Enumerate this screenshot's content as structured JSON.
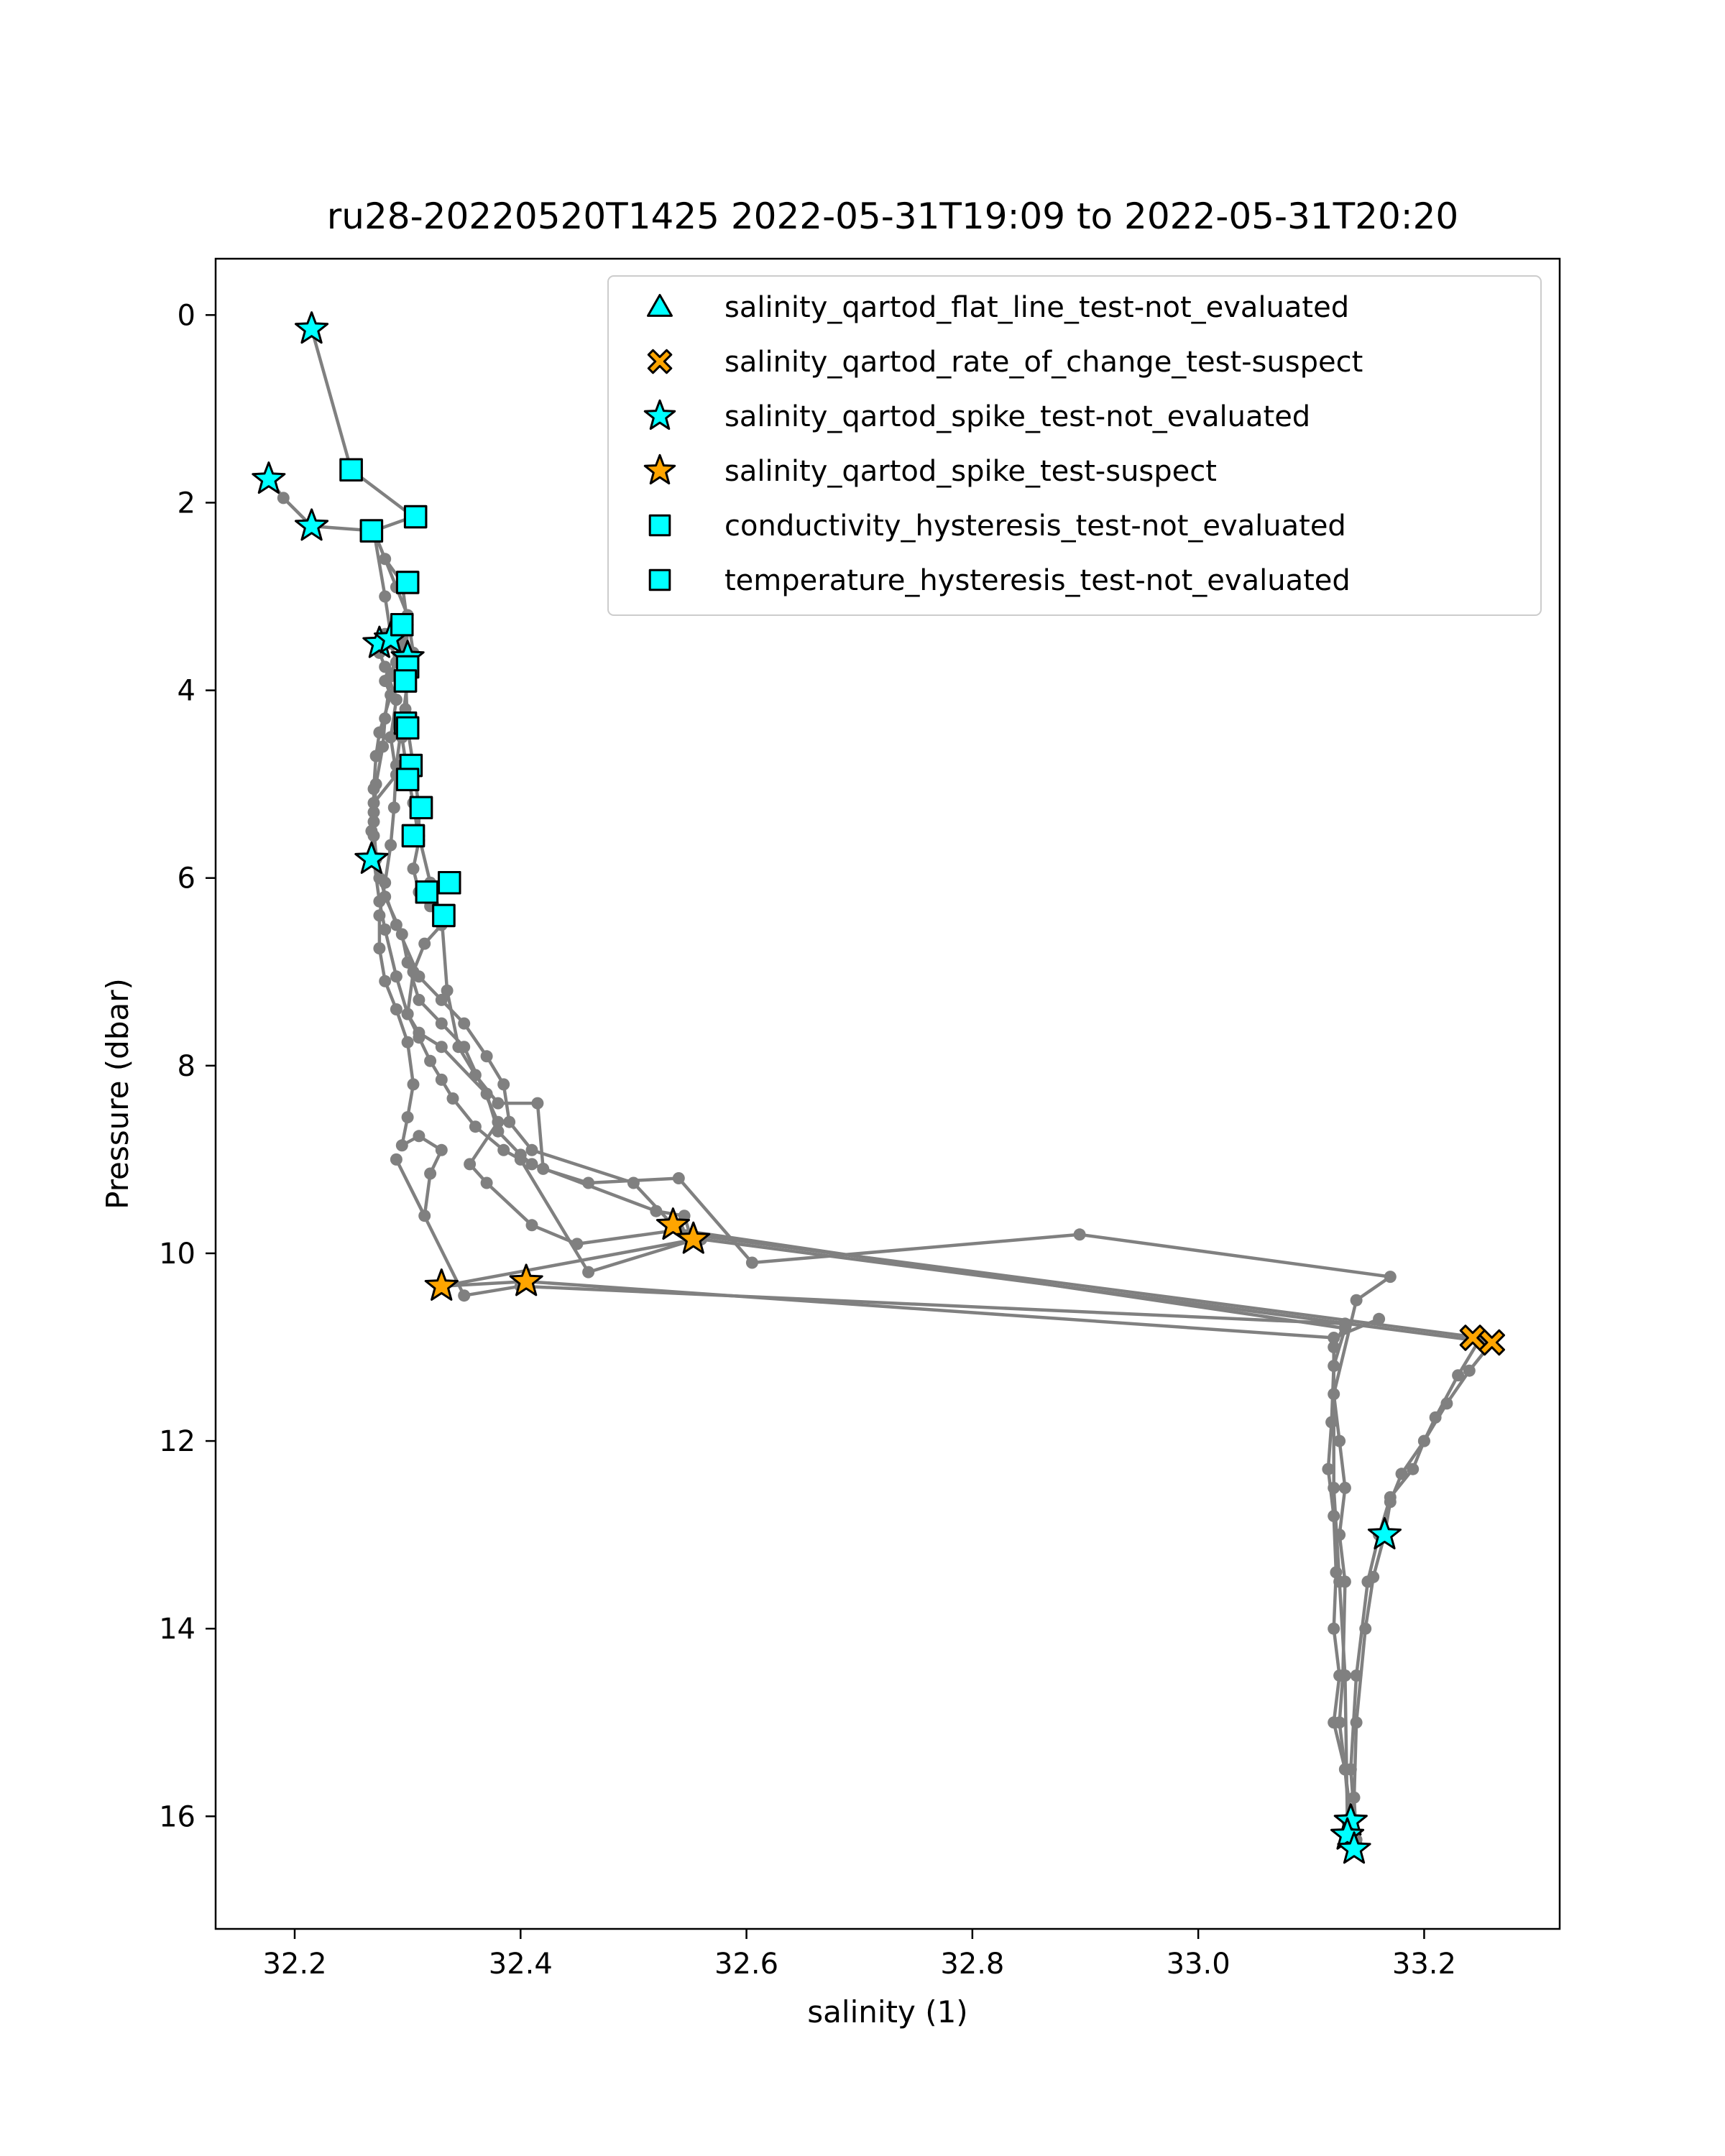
{
  "chart_data": {
    "type": "scatter",
    "title": "ru28-20220520T1425 2022-05-31T19:09 to 2022-05-31T20:20",
    "xlabel": "salinity (1)",
    "ylabel": "Pressure (dbar)",
    "xlim": [
      32.13,
      33.32
    ],
    "ylim": [
      17.2,
      -0.6
    ],
    "y_inverted": true,
    "xticks": [
      32.2,
      32.4,
      32.6,
      32.8,
      33.0,
      33.2
    ],
    "xtick_labels": [
      "32.2",
      "32.4",
      "32.6",
      "32.8",
      "33.0",
      "33.2"
    ],
    "yticks": [
      0,
      2,
      4,
      6,
      8,
      10,
      12,
      14,
      16
    ],
    "ytick_labels": [
      "0",
      "2",
      "4",
      "6",
      "8",
      "10",
      "12",
      "14",
      "16"
    ],
    "grid": false,
    "legend_position": "top-right",
    "profile_color": "#808080",
    "profiles": [
      {
        "salinity": [
          32.215,
          32.25,
          32.305,
          32.27,
          32.28,
          32.295,
          32.3,
          32.298,
          32.3,
          32.305,
          32.31,
          32.31,
          32.32,
          32.33,
          32.335,
          32.345,
          32.36,
          32.38,
          32.415,
          32.42,
          32.46,
          32.54,
          32.605,
          32.895,
          33.17,
          33.14,
          33.12,
          33.125,
          33.13,
          33.125,
          33.13,
          33.128,
          33.125,
          33.13,
          33.135
        ],
        "pressure": [
          0.15,
          1.65,
          2.15,
          2.3,
          2.6,
          2.85,
          3.3,
          3.8,
          4.4,
          4.8,
          5.25,
          5.55,
          6.05,
          6.4,
          7.2,
          7.8,
          8.1,
          8.4,
          8.4,
          9.1,
          9.25,
          9.2,
          10.1,
          9.8,
          10.25,
          10.5,
          11.5,
          12.0,
          12.5,
          13.0,
          13.5,
          14.5,
          15.0,
          15.5,
          16.0
        ]
      },
      {
        "salinity": [
          32.178,
          32.19,
          32.215,
          32.27,
          32.29,
          32.3,
          32.295,
          32.28,
          32.285,
          32.275,
          32.272,
          32.27,
          32.27,
          32.268,
          32.27,
          32.275,
          32.28,
          32.29,
          32.3,
          32.31,
          32.33,
          32.37,
          32.38,
          32.4,
          32.41,
          32.52,
          32.545,
          32.55,
          33.25,
          33.23,
          33.21,
          33.2,
          33.19,
          33.17,
          33.16,
          33.15,
          33.14,
          33.135,
          33.14
        ],
        "pressure": [
          1.75,
          1.95,
          2.25,
          2.3,
          2.9,
          3.2,
          3.6,
          3.9,
          4.05,
          4.45,
          4.7,
          5.05,
          5.3,
          5.5,
          5.8,
          6.25,
          6.55,
          7.05,
          7.45,
          7.65,
          7.8,
          8.3,
          8.7,
          8.95,
          9.05,
          9.55,
          9.6,
          9.8,
          10.9,
          11.3,
          11.75,
          12.0,
          12.3,
          12.6,
          13.0,
          13.5,
          14.5,
          15.5,
          16.3
        ]
      },
      {
        "salinity": [
          32.27,
          32.28,
          32.285,
          32.275,
          32.28,
          32.29,
          32.285,
          32.29,
          32.27,
          32.27,
          32.275,
          32.29,
          32.31,
          32.33,
          32.35,
          32.37,
          32.385,
          32.39,
          32.41,
          32.5,
          32.535,
          32.56,
          33.26,
          33.24,
          33.22,
          33.2,
          33.18,
          33.17,
          33.165,
          33.155,
          33.148,
          33.14,
          33.138,
          33.14
        ],
        "pressure": [
          2.3,
          3.0,
          3.4,
          3.6,
          3.75,
          4.1,
          4.5,
          4.9,
          5.2,
          5.55,
          6.0,
          6.5,
          7.05,
          7.3,
          7.55,
          7.9,
          8.2,
          8.6,
          8.9,
          9.25,
          9.7,
          9.85,
          10.95,
          11.25,
          11.6,
          12.0,
          12.35,
          12.65,
          13.0,
          13.45,
          14.0,
          15.0,
          15.8,
          16.25
        ]
      },
      {
        "salinity": [
          32.28,
          32.285,
          32.29,
          32.285,
          32.28,
          32.278,
          32.272,
          32.27,
          32.272,
          32.28,
          32.295,
          32.3,
          32.31,
          32.33,
          32.35,
          32.38,
          32.355,
          32.37,
          32.41,
          32.45,
          32.54,
          33.13,
          33.12,
          33.118,
          33.115,
          33.12,
          33.122,
          33.12,
          33.125,
          33.12,
          33.13,
          33.135
        ],
        "pressure": [
          3.4,
          3.5,
          3.7,
          3.85,
          4.3,
          4.6,
          5.0,
          5.4,
          5.8,
          6.2,
          6.6,
          6.9,
          7.3,
          7.55,
          7.8,
          8.6,
          9.05,
          9.25,
          9.7,
          9.9,
          9.75,
          10.8,
          11.2,
          11.8,
          12.3,
          12.8,
          13.4,
          14.0,
          14.5,
          15.0,
          15.5,
          16.2
        ]
      },
      {
        "salinity": [
          32.29,
          32.295,
          32.3,
          32.298,
          32.295,
          32.3,
          32.305,
          32.31,
          32.305,
          32.31,
          32.32,
          32.33,
          32.315,
          32.305,
          32.3,
          32.31,
          32.32,
          32.33,
          32.34,
          32.36,
          32.385,
          32.4,
          32.46,
          32.555,
          32.33,
          32.405,
          33.12,
          33.16
        ],
        "pressure": [
          3.3,
          3.5,
          3.8,
          4.2,
          4.5,
          4.9,
          5.2,
          5.6,
          5.9,
          6.15,
          6.3,
          6.5,
          6.7,
          7.0,
          7.45,
          7.7,
          7.95,
          8.15,
          8.35,
          8.65,
          8.9,
          9.0,
          10.2,
          9.85,
          10.35,
          10.3,
          10.9,
          10.7
        ]
      },
      {
        "salinity": [
          32.3,
          32.305,
          32.3,
          32.295,
          32.29,
          32.288,
          32.285,
          32.28,
          32.275,
          32.275,
          32.28,
          32.29,
          32.3,
          32.305,
          32.3,
          32.295,
          32.31,
          32.33,
          32.32,
          32.315,
          32.29,
          32.35,
          32.4,
          33.13,
          33.12,
          33.12,
          33.125,
          33.13,
          33.132
        ],
        "pressure": [
          3.2,
          3.6,
          3.9,
          4.35,
          4.8,
          5.25,
          5.65,
          6.05,
          6.4,
          6.75,
          7.1,
          7.4,
          7.75,
          8.2,
          8.55,
          8.85,
          8.75,
          8.9,
          9.15,
          9.6,
          9.0,
          10.45,
          10.35,
          10.75,
          11.0,
          12.5,
          13.5,
          14.5,
          16.05
        ]
      }
    ],
    "series": [
      {
        "name": "salinity_qartod_flat_line_test-not_evaluated",
        "marker": "triangle",
        "color": "#00ffff",
        "x": [],
        "y": []
      },
      {
        "name": "salinity_qartod_rate_of_change_test-suspect",
        "marker": "x",
        "color": "#ffa500",
        "x": [
          33.243,
          33.26
        ],
        "y": [
          10.9,
          10.95
        ]
      },
      {
        "name": "salinity_qartod_spike_test-not_evaluated",
        "marker": "star",
        "color": "#00ffff",
        "x": [
          32.215,
          32.177,
          32.215,
          32.275,
          32.285,
          32.3,
          32.268,
          33.165,
          33.135,
          33.132,
          33.138
        ],
        "y": [
          0.15,
          1.75,
          2.25,
          3.5,
          3.45,
          3.65,
          5.8,
          13.0,
          16.05,
          16.2,
          16.35
        ]
      },
      {
        "name": "salinity_qartod_spike_test-suspect",
        "marker": "star",
        "color": "#ffa500",
        "x": [
          32.535,
          32.553,
          32.33,
          32.405
        ],
        "y": [
          9.7,
          9.85,
          10.35,
          10.3
        ]
      },
      {
        "name": "conductivity_hysteresis_test-not_evaluated",
        "marker": "square",
        "color": "#00ffff",
        "x": [
          32.25,
          32.307,
          32.268,
          32.3,
          32.295,
          32.3,
          32.298,
          32.298,
          32.3,
          32.303,
          32.3,
          32.312,
          32.305,
          32.337,
          32.317,
          32.332
        ],
        "y": [
          1.65,
          2.15,
          2.3,
          2.85,
          3.3,
          3.75,
          3.9,
          4.35,
          4.4,
          4.8,
          4.95,
          5.25,
          5.55,
          6.05,
          6.15,
          6.4
        ]
      },
      {
        "name": "temperature_hysteresis_test-not_evaluated",
        "marker": "square",
        "color": "#00ffff",
        "x": [
          32.25,
          32.307,
          32.268,
          32.3,
          32.295,
          32.3,
          32.298,
          32.298,
          32.3,
          32.303,
          32.3,
          32.312,
          32.305,
          32.337,
          32.317,
          32.332
        ],
        "y": [
          1.65,
          2.15,
          2.3,
          2.85,
          3.3,
          3.75,
          3.9,
          4.35,
          4.4,
          4.8,
          4.95,
          5.25,
          5.55,
          6.05,
          6.15,
          6.4
        ]
      }
    ]
  }
}
